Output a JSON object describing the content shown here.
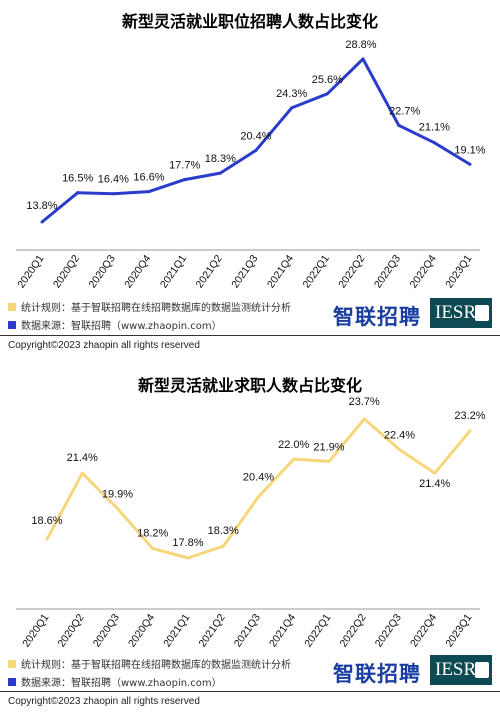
{
  "chart_data": [
    {
      "type": "line",
      "title": "新型灵活就业职位招聘人数占比变化",
      "categories": [
        "2020Q1",
        "2020Q2",
        "2020Q3",
        "2020Q4",
        "2021Q1",
        "2021Q2",
        "2021Q3",
        "2021Q4",
        "2022Q1",
        "2022Q2",
        "2022Q3",
        "2022Q4",
        "2023Q1"
      ],
      "values": [
        13.8,
        16.5,
        16.4,
        16.6,
        17.7,
        18.3,
        20.4,
        24.3,
        25.6,
        28.8,
        22.7,
        21.1,
        19.1
      ],
      "labels": [
        "13.8%",
        "16.5%",
        "16.4%",
        "16.6%",
        "17.7%",
        "18.3%",
        "20.4%",
        "24.3%",
        "25.6%",
        "28.8%",
        "22.7%",
        "21.1%",
        "19.1%"
      ],
      "color": "#2b3ccc",
      "grid": false
    },
    {
      "type": "line",
      "title": "新型灵活就业求职人数占比变化",
      "categories": [
        "2020Q1",
        "2020Q2",
        "2020Q3",
        "2020Q4",
        "2021Q1",
        "2021Q2",
        "2021Q3",
        "2021Q4",
        "2022Q1",
        "2022Q2",
        "2022Q3",
        "2022Q4",
        "2023Q1"
      ],
      "values": [
        18.6,
        21.4,
        19.9,
        18.2,
        17.8,
        18.3,
        20.4,
        22.0,
        21.9,
        23.7,
        22.4,
        21.4,
        23.2
      ],
      "labels": [
        "18.6%",
        "21.4%",
        "19.9%",
        "18.2%",
        "17.8%",
        "18.3%",
        "20.4%",
        "22.0%",
        "21.9%",
        "23.7%",
        "22.4%",
        "21.4%",
        "23.2%"
      ],
      "color": "#f5d77a",
      "grid": false
    }
  ],
  "panels": [
    {
      "legend_rule": "统计规则：基于智联招聘在线招聘数据库的数据监测统计分析",
      "legend_source": "数据来源：智联招聘（www.zhaopin.com）",
      "rule_color": "#f5d77a",
      "source_color": "#2b3ccc",
      "brand": "智联招聘",
      "iesr": "IESR",
      "copyright": "Copyright©2023 zhaopin all rights reserved"
    },
    {
      "legend_rule": "统计规则：基于智联招聘在线招聘数据库的数据监测统计分析",
      "legend_source": "数据来源：智联招聘（www.zhaopin.com）",
      "rule_color": "#f5d77a",
      "source_color": "#2b3ccc",
      "brand": "智联招聘",
      "iesr": "IESR",
      "copyright": "Copyright©2023 zhaopin all rights reserved"
    }
  ]
}
